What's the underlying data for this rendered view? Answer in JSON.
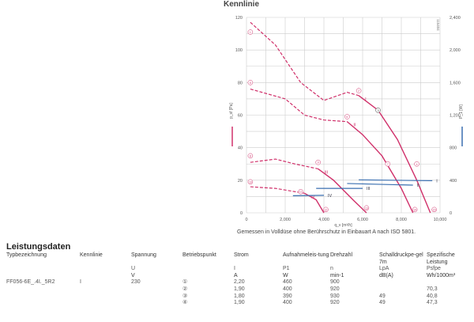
{
  "chart_data": {
    "type": "line",
    "title": "Kennlinie",
    "xlabel": "q_v [m³/h]",
    "ylabel": "p_sf [Pa]",
    "y2label": "P_1 [W]",
    "xlim": [
      0,
      10000
    ],
    "ylim": [
      0,
      120
    ],
    "y2lim": [
      0,
      2400
    ],
    "xticks": [
      "0",
      "2,000",
      "4,000",
      "6,000",
      "8,000",
      "10,000"
    ],
    "yticks": [
      "0",
      "20",
      "40",
      "60",
      "80",
      "100",
      "120"
    ],
    "y2ticks": [
      "0",
      "400",
      "800",
      "1,200",
      "1,600",
      "2,000",
      "2,400"
    ],
    "grid": true,
    "side_code": "115404",
    "caption": "Gemessen in Volldüse ohne Berührschutz in Einbauart A nach ISO 5801.",
    "pressure_series": [
      {
        "name": "I",
        "dashed": [
          [
            200,
            117
          ],
          [
            1500,
            103
          ],
          [
            2800,
            80
          ],
          [
            4000,
            69
          ],
          [
            5200,
            74
          ],
          [
            5800,
            72
          ]
        ],
        "solid": [
          [
            5800,
            72
          ],
          [
            6800,
            63
          ],
          [
            7800,
            45
          ],
          [
            8800,
            20
          ],
          [
            9500,
            0
          ]
        ]
      },
      {
        "name": "II",
        "dashed": [
          [
            200,
            76
          ],
          [
            2000,
            70
          ],
          [
            3000,
            60
          ],
          [
            4000,
            57
          ],
          [
            5200,
            56
          ]
        ],
        "solid": [
          [
            5200,
            56
          ],
          [
            6000,
            48
          ],
          [
            7000,
            35
          ],
          [
            8000,
            15
          ],
          [
            8600,
            0
          ]
        ]
      },
      {
        "name": "III",
        "dashed": [
          [
            200,
            31
          ],
          [
            1500,
            33
          ],
          [
            2500,
            30
          ],
          [
            3700,
            27
          ]
        ],
        "solid": [
          [
            3700,
            27
          ],
          [
            4500,
            20
          ],
          [
            5500,
            8
          ],
          [
            6200,
            0
          ]
        ]
      },
      {
        "name": "IV",
        "dashed": [
          [
            200,
            16
          ],
          [
            1500,
            15
          ],
          [
            2500,
            13
          ],
          [
            3000,
            12
          ]
        ],
        "solid": [
          [
            3000,
            12
          ],
          [
            3600,
            8
          ],
          [
            4000,
            0
          ]
        ]
      }
    ],
    "power_series": [
      {
        "name": "I",
        "points": [
          [
            5800,
            405
          ],
          [
            9600,
            395
          ]
        ]
      },
      {
        "name": "II",
        "points": [
          [
            5200,
            360
          ],
          [
            8600,
            340
          ]
        ]
      },
      {
        "name": "III",
        "points": [
          [
            3600,
            300
          ],
          [
            6000,
            300
          ]
        ]
      },
      {
        "name": "IV",
        "points": [
          [
            2400,
            210
          ],
          [
            4000,
            215
          ]
        ]
      }
    ],
    "point_markers": [
      {
        "label": "1",
        "x": 200,
        "y": 111
      },
      {
        "label": "2",
        "x": 5800,
        "y": 75
      },
      {
        "label": "3",
        "x": 6800,
        "y": 63
      },
      {
        "label": "4",
        "x": 8800,
        "y": 30
      },
      {
        "label": "5",
        "x": 200,
        "y": 80
      },
      {
        "label": "6",
        "x": 5200,
        "y": 59
      },
      {
        "label": "7",
        "x": 7300,
        "y": 30
      },
      {
        "label": "8",
        "x": 200,
        "y": 35
      },
      {
        "label": "9",
        "x": 3700,
        "y": 31
      },
      {
        "label": "10",
        "x": 200,
        "y": 19
      },
      {
        "label": "11",
        "x": 2800,
        "y": 13
      },
      {
        "label": "12",
        "x": 4100,
        "y": 2
      },
      {
        "label": "13",
        "x": 6200,
        "y": 3
      },
      {
        "label": "14",
        "x": 8700,
        "y": 2
      },
      {
        "label": "15",
        "x": 9700,
        "y": 2
      }
    ]
  },
  "section_title": "Leistungsdaten",
  "table": {
    "headers": [
      "Typbezeichnung",
      "Kennlinie",
      "Spannung",
      "Betriebspunkt",
      "Strom",
      "Aufnahmeleis-tung",
      "Drehzahl",
      "Schalldruckpe-gel 7m",
      "Spezifische Leistung"
    ],
    "symbols": [
      "",
      "",
      "U",
      "",
      "I",
      "P1",
      "n",
      "LpA",
      "Psfpe"
    ],
    "units": [
      "",
      "",
      "V",
      "",
      "A",
      "W",
      "min-1",
      "dB(A)",
      "Wh/1000m³"
    ],
    "rows": [
      [
        "FF056-6E_.4I._5R2",
        "I",
        "230",
        "①",
        "2,20",
        "460",
        "900",
        "",
        ""
      ],
      [
        "",
        "",
        "",
        "②",
        "1,90",
        "400",
        "920",
        "",
        "70,3"
      ],
      [
        "",
        "",
        "",
        "③",
        "1,80",
        "390",
        "930",
        "49",
        "40,8"
      ],
      [
        "",
        "",
        "",
        "④",
        "1,90",
        "400",
        "920",
        "49",
        "47,3"
      ]
    ]
  },
  "colors": {
    "pressure": "#d0306a",
    "power": "#3a6fb0",
    "grid": "#cccccc"
  }
}
